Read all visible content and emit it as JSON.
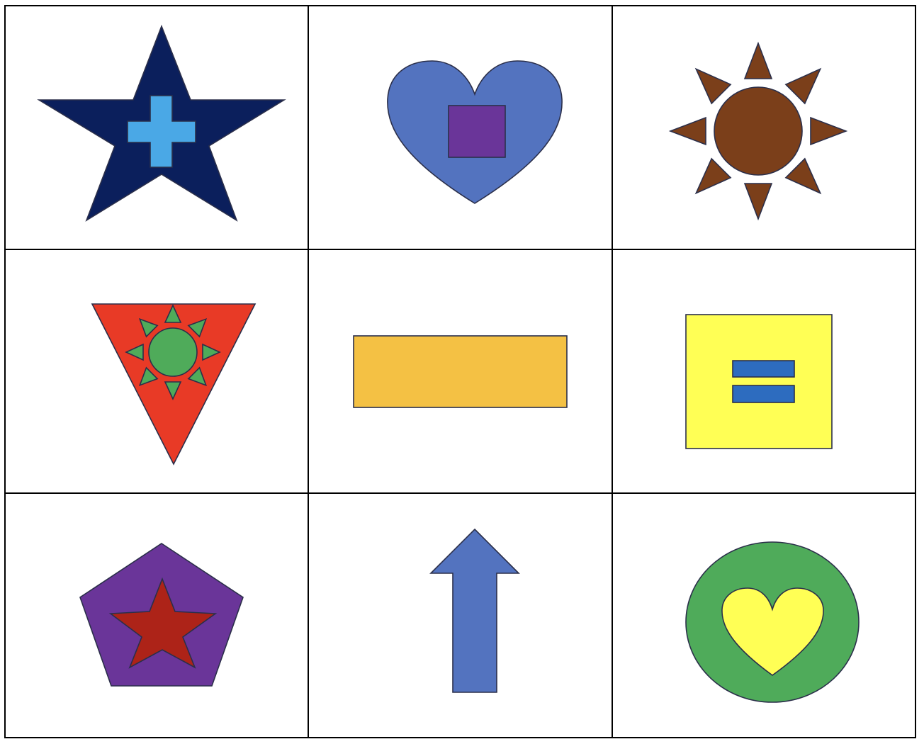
{
  "grid": {
    "rows": 3,
    "columns": 3
  },
  "colors": {
    "cell_background": "#ffffff",
    "grid_line": "#000000",
    "outline": "#2b2f4a",
    "navy": "#0b1f5c",
    "sky_blue": "#4aa8e6",
    "cornflower_blue": "#5373bf",
    "purple": "#6a3599",
    "brown": "#7b3f1a",
    "red_orange": "#e83a26",
    "green": "#4fab5a",
    "orange_yellow": "#f4c144",
    "yellow": "#ffff55",
    "blue": "#2d6cbf",
    "dark_red": "#ad2318"
  },
  "cells": [
    {
      "row": 1,
      "column": 1,
      "outer": {
        "shape": "star",
        "color": "navy"
      },
      "inner": {
        "shape": "plus",
        "color": "sky_blue"
      }
    },
    {
      "row": 1,
      "column": 2,
      "outer": {
        "shape": "heart",
        "color": "cornflower_blue"
      },
      "inner": {
        "shape": "square",
        "color": "purple"
      }
    },
    {
      "row": 1,
      "column": 3,
      "outer": {
        "shape": "sun",
        "color": "brown"
      },
      "inner": null
    },
    {
      "row": 2,
      "column": 1,
      "outer": {
        "shape": "inverted-triangle",
        "color": "red_orange"
      },
      "inner": {
        "shape": "sun",
        "color": "green"
      }
    },
    {
      "row": 2,
      "column": 2,
      "outer": {
        "shape": "rectangle",
        "color": "orange_yellow"
      },
      "inner": null
    },
    {
      "row": 2,
      "column": 3,
      "outer": {
        "shape": "square",
        "color": "yellow"
      },
      "inner": {
        "shape": "equals-sign",
        "color": "blue"
      }
    },
    {
      "row": 3,
      "column": 1,
      "outer": {
        "shape": "pentagon",
        "color": "purple"
      },
      "inner": {
        "shape": "star",
        "color": "dark_red"
      }
    },
    {
      "row": 3,
      "column": 2,
      "outer": {
        "shape": "up-arrow",
        "color": "cornflower_blue"
      },
      "inner": null
    },
    {
      "row": 3,
      "column": 3,
      "outer": {
        "shape": "circle",
        "color": "green"
      },
      "inner": {
        "shape": "heart",
        "color": "yellow"
      }
    }
  ]
}
